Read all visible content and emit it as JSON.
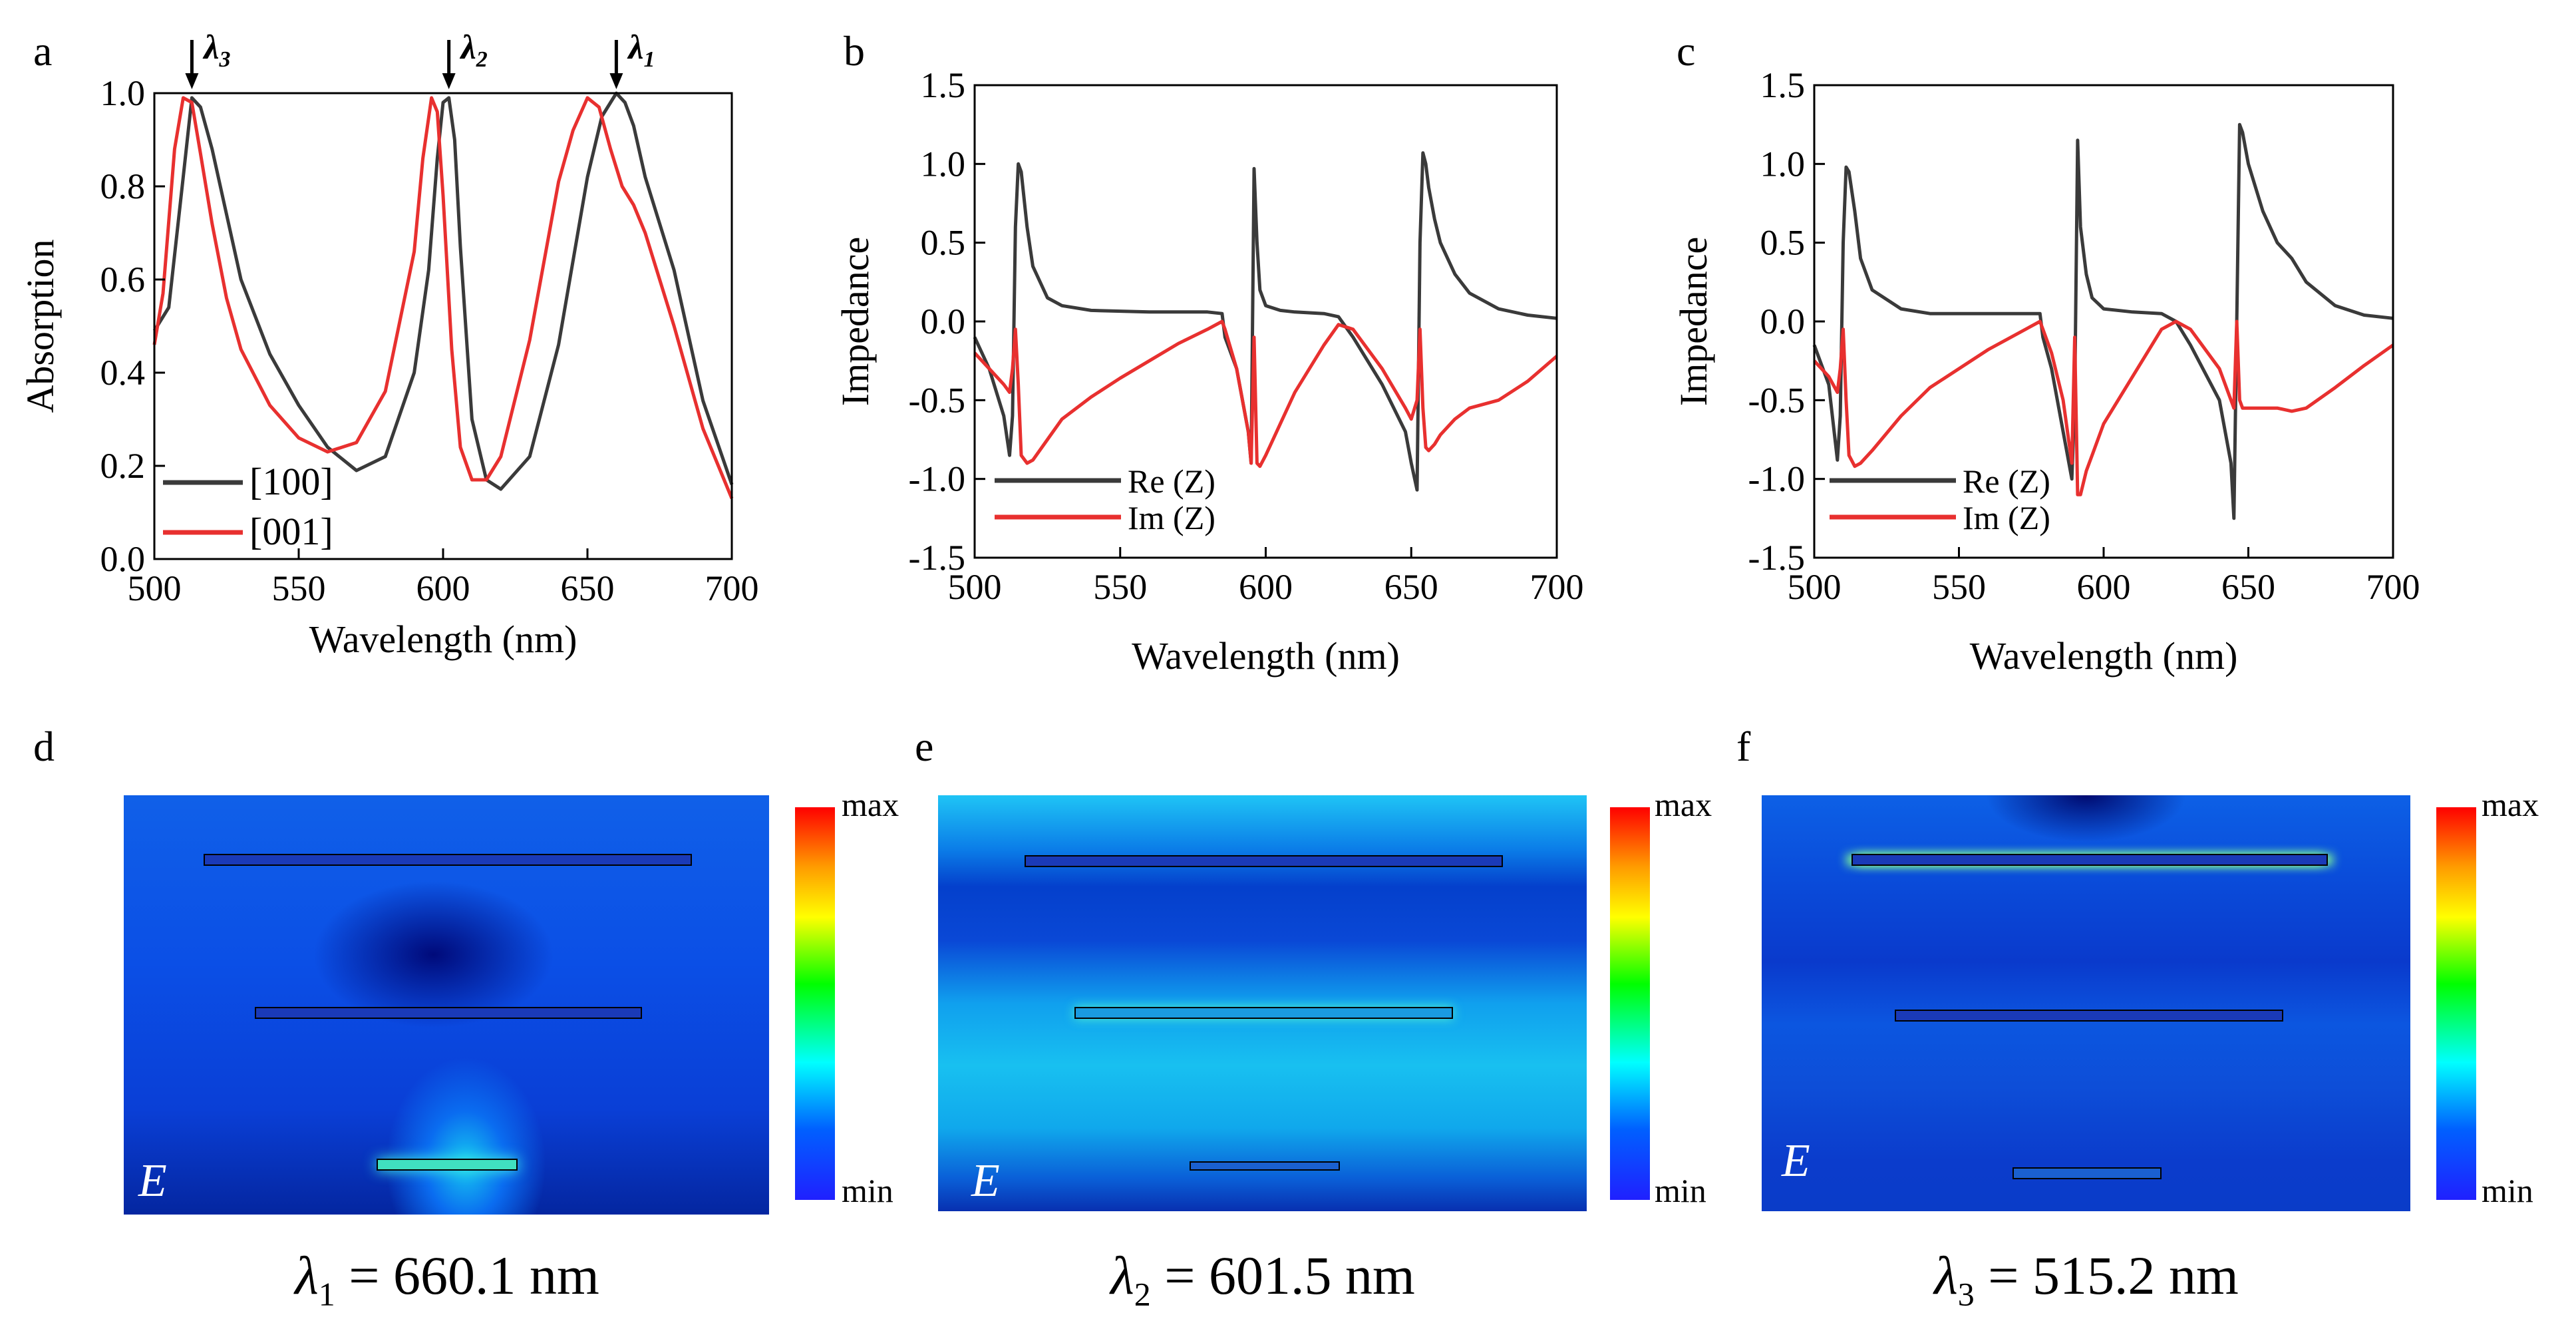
{
  "panel_labels": {
    "a": "a",
    "b": "b",
    "c": "c",
    "d": "d",
    "e": "e",
    "f": "f"
  },
  "chart_data": [
    {
      "id": "a",
      "type": "line",
      "xlabel": "Wavelength (nm)",
      "ylabel": "Absorption",
      "xlim": [
        500,
        700
      ],
      "ylim": [
        0,
        1.0
      ],
      "xticks": [
        500,
        550,
        600,
        650,
        700
      ],
      "yticks": [
        0.0,
        0.2,
        0.4,
        0.6,
        0.8,
        1.0
      ],
      "ytick_labels": [
        "0.0",
        "0.2",
        "0.4",
        "0.6",
        "0.8",
        "1.0"
      ],
      "annotations": [
        {
          "x": 513,
          "label": "λ3"
        },
        {
          "x": 602,
          "label": "λ2"
        },
        {
          "x": 660,
          "label": "λ1"
        }
      ],
      "series": [
        {
          "name": "[100]",
          "color": "#3a3a3a",
          "x": [
            500,
            505,
            510,
            513,
            516,
            520,
            525,
            530,
            540,
            550,
            560,
            570,
            580,
            590,
            595,
            598,
            600,
            602,
            604,
            606,
            610,
            615,
            620,
            630,
            640,
            650,
            655,
            660,
            663,
            666,
            670,
            675,
            680,
            690,
            700
          ],
          "y": [
            0.49,
            0.54,
            0.82,
            0.99,
            0.97,
            0.88,
            0.74,
            0.6,
            0.44,
            0.33,
            0.24,
            0.19,
            0.22,
            0.4,
            0.62,
            0.86,
            0.98,
            0.99,
            0.9,
            0.67,
            0.3,
            0.17,
            0.15,
            0.22,
            0.46,
            0.82,
            0.95,
            1.0,
            0.98,
            0.93,
            0.82,
            0.72,
            0.62,
            0.34,
            0.16
          ]
        },
        {
          "name": "[001]",
          "color": "#e8302f",
          "x": [
            500,
            503,
            507,
            510,
            513,
            516,
            520,
            525,
            530,
            540,
            550,
            560,
            570,
            580,
            590,
            593,
            596,
            598,
            600,
            603,
            606,
            610,
            615,
            620,
            630,
            640,
            645,
            650,
            654,
            658,
            662,
            666,
            670,
            675,
            680,
            690,
            700
          ],
          "y": [
            0.46,
            0.57,
            0.88,
            0.99,
            0.98,
            0.87,
            0.72,
            0.56,
            0.45,
            0.33,
            0.26,
            0.23,
            0.25,
            0.36,
            0.66,
            0.86,
            0.99,
            0.96,
            0.78,
            0.45,
            0.24,
            0.17,
            0.17,
            0.22,
            0.47,
            0.81,
            0.92,
            0.99,
            0.97,
            0.88,
            0.8,
            0.76,
            0.7,
            0.6,
            0.5,
            0.28,
            0.13
          ]
        }
      ],
      "legend": [
        {
          "label": "[100]"
        },
        {
          "label": "[001]"
        }
      ]
    },
    {
      "id": "b",
      "type": "line",
      "xlabel": "Wavelength (nm)",
      "ylabel": "Impedance",
      "xlim": [
        500,
        700
      ],
      "ylim": [
        -1.5,
        1.5
      ],
      "xticks": [
        500,
        550,
        600,
        650,
        700
      ],
      "yticks": [
        -1.5,
        -1.0,
        -0.5,
        0.0,
        0.5,
        1.0,
        1.5
      ],
      "ytick_labels": [
        "-1.5",
        "-1.0",
        "-0.5",
        "0.0",
        "0.5",
        "1.0",
        "1.5"
      ],
      "series": [
        {
          "name": "Re (Z)",
          "color": "#3a3a3a",
          "x": [
            500,
            505,
            510,
            512,
            513,
            514,
            515,
            516,
            518,
            520,
            525,
            530,
            540,
            560,
            580,
            585,
            586,
            590,
            594,
            595,
            596,
            597,
            598,
            600,
            605,
            610,
            620,
            625,
            630,
            640,
            648,
            650,
            652,
            653,
            654,
            655,
            656,
            658,
            660,
            665,
            670,
            680,
            690,
            700
          ],
          "y": [
            -0.1,
            -0.3,
            -0.6,
            -0.85,
            -0.6,
            0.6,
            1.0,
            0.95,
            0.6,
            0.35,
            0.15,
            0.1,
            0.07,
            0.06,
            0.06,
            0.05,
            -0.1,
            -0.3,
            -0.7,
            -0.9,
            0.97,
            0.5,
            0.2,
            0.1,
            0.07,
            0.06,
            0.05,
            0.03,
            -0.1,
            -0.4,
            -0.7,
            -0.9,
            -1.07,
            0.5,
            1.07,
            1.0,
            0.85,
            0.65,
            0.5,
            0.3,
            0.18,
            0.08,
            0.04,
            0.02
          ]
        },
        {
          "name": "Im (Z)",
          "color": "#e8302f",
          "x": [
            500,
            505,
            510,
            512,
            513,
            514,
            515,
            516,
            518,
            520,
            525,
            530,
            540,
            550,
            560,
            570,
            580,
            585,
            586,
            590,
            594,
            595,
            596,
            597,
            598,
            600,
            605,
            610,
            620,
            625,
            630,
            640,
            648,
            650,
            652,
            653,
            654,
            655,
            656,
            658,
            660,
            665,
            670,
            680,
            690,
            700
          ],
          "y": [
            -0.2,
            -0.3,
            -0.4,
            -0.45,
            -0.3,
            -0.05,
            -0.4,
            -0.85,
            -0.9,
            -0.88,
            -0.75,
            -0.62,
            -0.48,
            -0.36,
            -0.25,
            -0.14,
            -0.05,
            0.0,
            -0.05,
            -0.3,
            -0.7,
            -0.9,
            -0.1,
            -0.9,
            -0.92,
            -0.85,
            -0.65,
            -0.45,
            -0.15,
            -0.02,
            -0.05,
            -0.3,
            -0.55,
            -0.62,
            -0.5,
            -0.05,
            -0.55,
            -0.8,
            -0.82,
            -0.78,
            -0.72,
            -0.62,
            -0.55,
            -0.5,
            -0.38,
            -0.22
          ]
        }
      ],
      "legend": [
        {
          "label": "Re (Z)"
        },
        {
          "label": "Im (Z)"
        }
      ]
    },
    {
      "id": "c",
      "type": "line",
      "xlabel": "Wavelength (nm)",
      "ylabel": "Impedance",
      "xlim": [
        500,
        700
      ],
      "ylim": [
        -1.5,
        1.5
      ],
      "xticks": [
        500,
        550,
        600,
        650,
        700
      ],
      "yticks": [
        -1.5,
        -1.0,
        -0.5,
        0.0,
        0.5,
        1.0,
        1.5
      ],
      "ytick_labels": [
        "-1.5",
        "-1.0",
        "-0.5",
        "0.0",
        "0.5",
        "1.0",
        "1.5"
      ],
      "series": [
        {
          "name": "Re (Z)",
          "color": "#3a3a3a",
          "x": [
            500,
            505,
            508,
            509,
            510,
            511,
            512,
            514,
            516,
            520,
            530,
            540,
            560,
            578,
            579,
            582,
            586,
            589,
            590,
            591,
            592,
            594,
            596,
            600,
            610,
            620,
            625,
            630,
            640,
            644,
            645,
            646,
            647,
            648,
            650,
            655,
            660,
            665,
            670,
            680,
            690,
            700
          ],
          "y": [
            -0.15,
            -0.4,
            -0.88,
            -0.6,
            0.5,
            0.98,
            0.95,
            0.7,
            0.4,
            0.2,
            0.08,
            0.05,
            0.05,
            0.05,
            -0.1,
            -0.3,
            -0.7,
            -1.0,
            -0.5,
            1.15,
            0.6,
            0.3,
            0.15,
            0.08,
            0.06,
            0.05,
            0.0,
            -0.15,
            -0.5,
            -0.9,
            -1.25,
            0.0,
            1.25,
            1.2,
            1.0,
            0.7,
            0.5,
            0.4,
            0.25,
            0.1,
            0.04,
            0.02
          ]
        },
        {
          "name": "Im (Z)",
          "color": "#e8302f",
          "x": [
            500,
            505,
            508,
            509,
            510,
            511,
            512,
            514,
            516,
            520,
            530,
            540,
            560,
            578,
            579,
            582,
            586,
            589,
            590,
            591,
            592,
            594,
            596,
            600,
            610,
            620,
            625,
            630,
            640,
            644,
            645,
            646,
            647,
            648,
            650,
            655,
            660,
            665,
            670,
            680,
            690,
            700
          ],
          "y": [
            -0.25,
            -0.35,
            -0.45,
            -0.3,
            -0.05,
            -0.5,
            -0.85,
            -0.92,
            -0.9,
            -0.82,
            -0.6,
            -0.42,
            -0.18,
            0.0,
            -0.05,
            -0.2,
            -0.5,
            -0.9,
            -0.1,
            -1.1,
            -1.1,
            -0.95,
            -0.85,
            -0.65,
            -0.35,
            -0.05,
            0.0,
            -0.05,
            -0.3,
            -0.5,
            -0.55,
            0.0,
            -0.5,
            -0.55,
            -0.55,
            -0.55,
            -0.55,
            -0.57,
            -0.55,
            -0.42,
            -0.28,
            -0.15
          ]
        }
      ],
      "legend": [
        {
          "label": "Re (Z)"
        },
        {
          "label": "Im (Z)"
        }
      ]
    }
  ],
  "field_maps": {
    "colorbar_max": "max",
    "colorbar_min": "min",
    "field_label": "E",
    "colors": [
      "#ff0000",
      "#ffff00",
      "#00ff00",
      "#00ffff",
      "#0000ff"
    ]
  },
  "captions": [
    {
      "lambda": "λ",
      "sub": "1",
      "rest": " = 660.1 nm"
    },
    {
      "lambda": "λ",
      "sub": "2",
      "rest": " = 601.5 nm"
    },
    {
      "lambda": "λ",
      "sub": "3",
      "rest": " = 515.2 nm"
    }
  ]
}
